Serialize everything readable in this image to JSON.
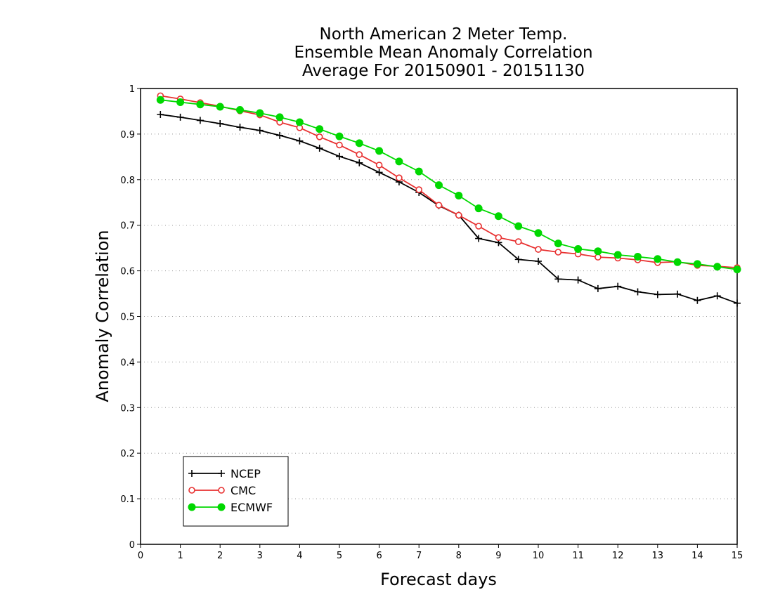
{
  "chart_data": {
    "type": "line",
    "title": [
      "North American 2 Meter Temp.",
      "Ensemble Mean Anomaly Correlation",
      "Average For 20150901 - 20151130"
    ],
    "xlabel": "Forecast days",
    "ylabel": "Anomaly Correlation",
    "xlim": [
      0,
      15
    ],
    "ylim": [
      0,
      1
    ],
    "x_ticks": [
      "0",
      "1",
      "2",
      "3",
      "4",
      "5",
      "6",
      "7",
      "8",
      "9",
      "10",
      "11",
      "12",
      "13",
      "14",
      "15"
    ],
    "y_ticks": [
      "0",
      "0.1",
      "0.2",
      "0.3",
      "0.4",
      "0.5",
      "0.6",
      "0.7",
      "0.8",
      "0.9",
      "1"
    ],
    "grid": "horizontal-dotted",
    "legend_position": "bottom-left",
    "x": [
      0.5,
      1,
      1.5,
      2,
      2.5,
      3,
      3.5,
      4,
      4.5,
      5,
      5.5,
      6,
      6.5,
      7,
      7.5,
      8,
      8.5,
      9,
      9.5,
      10,
      10.5,
      11,
      11.5,
      12,
      12.5,
      13,
      13.5,
      14,
      14.5,
      15
    ],
    "series": [
      {
        "name": "NCEP",
        "color": "#000000",
        "marker": "plus",
        "values": [
          0.943,
          0.937,
          0.93,
          0.923,
          0.915,
          0.908,
          0.897,
          0.885,
          0.869,
          0.851,
          0.837,
          0.816,
          0.795,
          0.772,
          0.743,
          0.722,
          0.671,
          0.662,
          0.625,
          0.621,
          0.582,
          0.58,
          0.561,
          0.566,
          0.554,
          0.548,
          0.549,
          0.535,
          0.545,
          0.529
        ]
      },
      {
        "name": "CMC",
        "color": "#e83030",
        "marker": "open-circle",
        "values": [
          0.984,
          0.977,
          0.969,
          0.961,
          0.951,
          0.942,
          0.926,
          0.914,
          0.894,
          0.876,
          0.855,
          0.832,
          0.804,
          0.778,
          0.744,
          0.722,
          0.698,
          0.673,
          0.664,
          0.647,
          0.641,
          0.637,
          0.63,
          0.628,
          0.624,
          0.618,
          0.62,
          0.612,
          0.61,
          0.607
        ]
      },
      {
        "name": "ECMWF",
        "color": "#00d800",
        "marker": "filled-circle",
        "values": [
          0.975,
          0.97,
          0.965,
          0.96,
          0.953,
          0.946,
          0.937,
          0.926,
          0.911,
          0.895,
          0.88,
          0.863,
          0.84,
          0.818,
          0.788,
          0.765,
          0.737,
          0.72,
          0.698,
          0.683,
          0.66,
          0.648,
          0.643,
          0.635,
          0.631,
          0.626,
          0.619,
          0.615,
          0.609,
          0.603
        ]
      }
    ]
  }
}
